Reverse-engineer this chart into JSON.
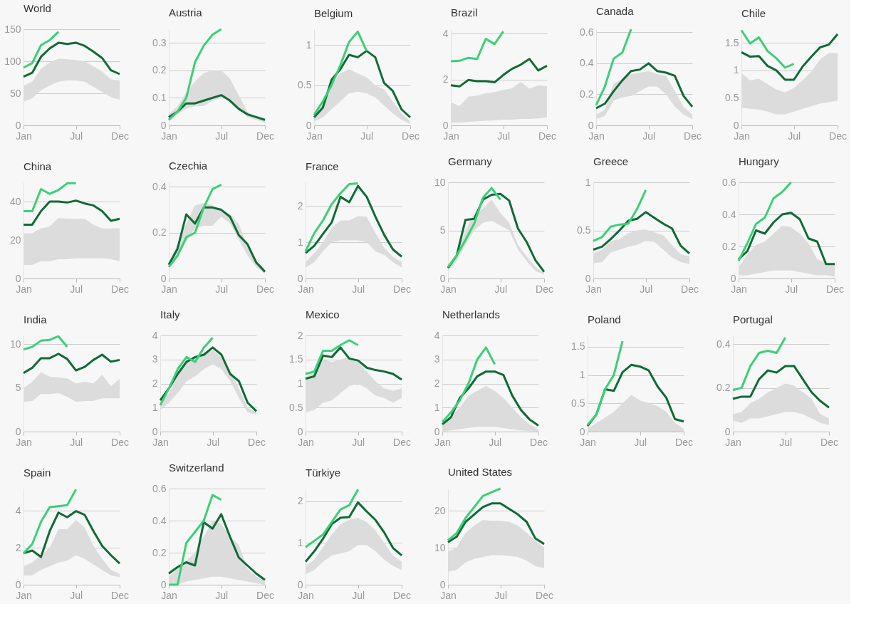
{
  "chart_data": [
    {
      "type": "line",
      "title": "World",
      "categories": [
        "Jan",
        null,
        null,
        null,
        null,
        null,
        "Jul",
        null,
        null,
        null,
        null,
        "Dec"
      ],
      "ylim": [
        0,
        150
      ],
      "yticks": [
        0,
        50,
        100,
        150
      ],
      "grid": "y",
      "series": [
        {
          "color": "#0e6b36",
          "values": [
            76,
            82,
            107,
            120,
            129,
            127,
            129,
            124,
            115,
            105,
            86,
            80
          ],
          "lower": [
            37,
            42,
            55,
            62,
            68,
            70,
            70,
            68,
            60,
            52,
            44,
            40
          ],
          "upper": [
            62,
            68,
            88,
            98,
            104,
            103,
            102,
            100,
            92,
            84,
            72,
            70
          ]
        },
        {
          "color": "#3ccf77",
          "values": [
            90,
            97,
            125,
            133,
            146,
            null,
            null,
            null,
            null,
            null,
            null,
            null
          ]
        }
      ]
    },
    {
      "type": "line",
      "title": "Austria",
      "categories": [
        "Jan",
        null,
        null,
        null,
        null,
        null,
        "Jul",
        null,
        null,
        null,
        null,
        "Dec"
      ],
      "ylim": [
        0,
        0.35
      ],
      "yticks": [
        0,
        0.1,
        0.2,
        0.3
      ],
      "grid": "y",
      "series": [
        {
          "color": "#0e6b36",
          "values": [
            0.03,
            0.05,
            0.08,
            0.08,
            0.09,
            0.1,
            0.11,
            0.09,
            0.06,
            0.04,
            0.03,
            0.02
          ],
          "lower": [
            0.02,
            0.04,
            0.06,
            0.07,
            0.07,
            0.09,
            0.1,
            0.09,
            0.06,
            0.03,
            0.02,
            0.01
          ],
          "upper": [
            0.04,
            0.07,
            0.12,
            0.16,
            0.19,
            0.2,
            0.2,
            0.17,
            0.11,
            0.05,
            0.03,
            0.02
          ]
        },
        {
          "color": "#3ccf77",
          "values": [
            0.02,
            0.05,
            0.1,
            0.23,
            0.29,
            0.33,
            0.35,
            null,
            null,
            null,
            null,
            null
          ]
        }
      ]
    },
    {
      "type": "line",
      "title": "Belgium",
      "categories": [
        "Jan",
        null,
        null,
        null,
        null,
        null,
        "Jul",
        null,
        null,
        null,
        null,
        "Dec"
      ],
      "ylim": [
        0,
        1.2
      ],
      "yticks": [
        0,
        0.5,
        1
      ],
      "grid": "y",
      "series": [
        {
          "color": "#0e6b36",
          "values": [
            0.1,
            0.22,
            0.57,
            0.7,
            0.88,
            0.85,
            0.93,
            0.85,
            0.53,
            0.43,
            0.2,
            0.1
          ],
          "lower": [
            0.05,
            0.1,
            0.2,
            0.3,
            0.4,
            0.42,
            0.4,
            0.35,
            0.25,
            0.15,
            0.07,
            0.02
          ],
          "upper": [
            0.15,
            0.3,
            0.5,
            0.65,
            0.7,
            0.65,
            0.6,
            0.5,
            0.45,
            0.3,
            0.15,
            0.05
          ]
        },
        {
          "color": "#3ccf77",
          "values": [
            0.13,
            0.3,
            0.5,
            0.75,
            1.04,
            1.17,
            0.93,
            null,
            null,
            null,
            null,
            null
          ]
        }
      ]
    },
    {
      "type": "line",
      "title": "Brazil",
      "categories": [
        "Jan",
        null,
        null,
        null,
        null,
        null,
        "Jul",
        null,
        null,
        null,
        null,
        "Dec"
      ],
      "ylim": [
        0,
        4.2
      ],
      "yticks": [
        0,
        2,
        4
      ],
      "grid": "y",
      "series": [
        {
          "color": "#0e6b36",
          "values": [
            1.75,
            1.7,
            1.98,
            1.93,
            1.93,
            1.88,
            2.2,
            2.47,
            2.65,
            2.9,
            2.4,
            2.6
          ],
          "lower": [
            0.12,
            0.12,
            0.15,
            0.18,
            0.2,
            0.22,
            0.25,
            0.25,
            0.28,
            0.28,
            0.3,
            0.35
          ],
          "upper": [
            1.0,
            0.85,
            1.25,
            1.3,
            1.4,
            1.45,
            1.55,
            1.62,
            1.9,
            1.6,
            1.75,
            1.7
          ]
        },
        {
          "color": "#3ccf77",
          "values": [
            2.8,
            2.82,
            2.95,
            2.9,
            3.78,
            3.55,
            4.1,
            null,
            null,
            null,
            null,
            null
          ]
        }
      ]
    },
    {
      "type": "line",
      "title": "Canada",
      "categories": [
        "Jan",
        null,
        null,
        null,
        null,
        null,
        "Jul",
        null,
        null,
        null,
        null,
        "Dec"
      ],
      "ylim": [
        0,
        0.62
      ],
      "yticks": [
        0,
        0.2,
        0.4,
        0.6
      ],
      "grid": "y",
      "series": [
        {
          "color": "#0e6b36",
          "values": [
            0.11,
            0.14,
            0.22,
            0.29,
            0.35,
            0.36,
            0.4,
            0.35,
            0.34,
            0.32,
            0.19,
            0.12
          ],
          "lower": [
            0.04,
            0.06,
            0.16,
            0.18,
            0.19,
            0.22,
            0.25,
            0.25,
            0.2,
            0.12,
            0.07,
            0.04
          ],
          "upper": [
            0.07,
            0.1,
            0.27,
            0.3,
            0.33,
            0.34,
            0.35,
            0.33,
            0.32,
            0.22,
            0.12,
            0.07
          ]
        },
        {
          "color": "#3ccf77",
          "values": [
            0.13,
            0.25,
            0.43,
            0.47,
            0.62,
            null,
            null,
            null,
            null,
            null,
            null,
            null
          ]
        }
      ]
    },
    {
      "type": "line",
      "title": "Chile",
      "categories": [
        "Jan",
        null,
        null,
        null,
        null,
        null,
        "Jul",
        null,
        null,
        null,
        null,
        "Dec"
      ],
      "ylim": [
        0,
        1.75
      ],
      "yticks": [
        0,
        0.5,
        1,
        1.5
      ],
      "grid": "y",
      "series": [
        {
          "color": "#0e6b36",
          "values": [
            1.33,
            1.25,
            1.26,
            1.08,
            1.0,
            0.83,
            0.83,
            1.07,
            1.25,
            1.42,
            1.47,
            1.66
          ],
          "lower": [
            0.32,
            0.3,
            0.29,
            0.25,
            0.2,
            0.2,
            0.25,
            0.3,
            0.35,
            0.4,
            0.42,
            0.45
          ],
          "upper": [
            0.95,
            0.82,
            0.85,
            0.75,
            0.65,
            0.6,
            0.68,
            0.82,
            0.98,
            1.2,
            1.32,
            1.32
          ]
        },
        {
          "color": "#3ccf77",
          "values": [
            1.73,
            1.49,
            1.6,
            1.35,
            1.22,
            1.05,
            1.12,
            null,
            null,
            null,
            null,
            null
          ]
        }
      ]
    },
    {
      "type": "line",
      "title": "China",
      "categories": [
        "Jan",
        null,
        null,
        null,
        null,
        null,
        "Jul",
        null,
        null,
        null,
        null,
        "Dec"
      ],
      "ylim": [
        0,
        50
      ],
      "yticks": [
        0,
        20,
        40
      ],
      "grid": "y",
      "series": [
        {
          "color": "#0e6b36",
          "values": [
            28,
            28,
            35,
            40,
            40,
            39.5,
            40.5,
            39,
            38,
            35,
            30,
            31
          ],
          "lower": [
            7,
            7,
            9,
            9,
            10,
            10,
            10.5,
            10.5,
            10.5,
            10.5,
            10,
            9
          ],
          "upper": [
            23.5,
            23.5,
            26,
            27,
            31.5,
            31,
            31,
            31,
            28,
            26,
            26,
            26
          ]
        },
        {
          "color": "#3ccf77",
          "values": [
            35,
            35,
            46.5,
            44,
            46,
            49.5,
            49.5,
            null,
            null,
            null,
            null,
            null
          ]
        }
      ]
    },
    {
      "type": "line",
      "title": "Czechia",
      "categories": [
        "Jan",
        null,
        null,
        null,
        null,
        null,
        "Jul",
        null,
        null,
        null,
        null,
        "Dec"
      ],
      "ylim": [
        0,
        0.42
      ],
      "yticks": [
        0,
        0.2,
        0.4
      ],
      "grid": "y",
      "series": [
        {
          "color": "#0e6b36",
          "values": [
            0.06,
            0.13,
            0.28,
            0.24,
            0.31,
            0.31,
            0.3,
            0.27,
            0.19,
            0.15,
            0.07,
            0.03
          ],
          "lower": [
            0.05,
            0.09,
            0.16,
            0.22,
            0.23,
            0.23,
            0.27,
            0.24,
            0.17,
            0.1,
            0.05,
            0.02
          ],
          "upper": [
            0.07,
            0.15,
            0.24,
            0.32,
            0.33,
            0.32,
            0.3,
            0.28,
            0.24,
            0.14,
            0.07,
            0.03
          ]
        },
        {
          "color": "#3ccf77",
          "values": [
            0.05,
            0.1,
            0.18,
            0.2,
            0.31,
            0.39,
            0.41,
            null,
            null,
            null,
            null,
            null
          ]
        }
      ]
    },
    {
      "type": "line",
      "title": "France",
      "categories": [
        "Jan",
        null,
        null,
        null,
        null,
        null,
        "Jul",
        null,
        null,
        null,
        null,
        "Dec"
      ],
      "ylim": [
        0,
        2.65
      ],
      "yticks": [
        0,
        1,
        2
      ],
      "grid": "y",
      "series": [
        {
          "color": "#0e6b36",
          "values": [
            0.7,
            0.9,
            1.23,
            1.55,
            2.25,
            2.1,
            2.55,
            2.25,
            1.7,
            1.2,
            0.8,
            0.6
          ],
          "lower": [
            0.3,
            0.45,
            0.75,
            1.0,
            1.05,
            1.05,
            1.05,
            1.0,
            0.75,
            0.65,
            0.45,
            0.3
          ],
          "upper": [
            0.45,
            0.7,
            1.0,
            1.4,
            1.6,
            1.6,
            1.72,
            1.7,
            1.25,
            0.85,
            0.6,
            0.45
          ]
        },
        {
          "color": "#3ccf77",
          "values": [
            0.75,
            1.25,
            1.6,
            2.05,
            2.35,
            2.6,
            2.62,
            null,
            null,
            null,
            null,
            null
          ]
        }
      ]
    },
    {
      "type": "line",
      "title": "Germany",
      "categories": [
        "Jan",
        null,
        null,
        null,
        null,
        null,
        "Jul",
        null,
        null,
        null,
        null,
        "Dec"
      ],
      "ylim": [
        0,
        10
      ],
      "yticks": [
        0,
        5,
        10
      ],
      "grid": "y",
      "series": [
        {
          "color": "#0e6b36",
          "values": [
            1.1,
            2.4,
            6.1,
            6.2,
            8.2,
            8.7,
            8.8,
            8.1,
            5.2,
            3.8,
            1.9,
            0.7
          ],
          "lower": [
            0.8,
            1.8,
            3.5,
            5.0,
            5.8,
            6.0,
            5.5,
            5.0,
            3.0,
            1.8,
            0.8,
            0.4
          ],
          "upper": [
            1.2,
            2.5,
            5,
            6.8,
            7.3,
            8.2,
            6.8,
            5.8,
            3.5,
            2.3,
            1.2,
            0.6
          ]
        },
        {
          "color": "#3ccf77",
          "values": [
            1.2,
            2.4,
            4.0,
            5.7,
            8.4,
            9.4,
            8.2,
            null,
            null,
            null,
            null,
            null
          ]
        }
      ]
    },
    {
      "type": "line",
      "title": "Greece",
      "categories": [
        "Jan",
        null,
        null,
        null,
        null,
        null,
        "Jul",
        null,
        null,
        null,
        null,
        "Dec"
      ],
      "ylim": [
        0,
        1
      ],
      "yticks": [
        0,
        0.5,
        1
      ],
      "grid": "y",
      "series": [
        {
          "color": "#0e6b36",
          "values": [
            0.3,
            0.33,
            0.41,
            0.5,
            0.6,
            0.62,
            0.69,
            0.63,
            0.57,
            0.52,
            0.34,
            0.26
          ],
          "lower": [
            0.16,
            0.17,
            0.27,
            0.3,
            0.33,
            0.35,
            0.39,
            0.38,
            0.3,
            0.22,
            0.17,
            0.15
          ],
          "upper": [
            0.26,
            0.3,
            0.39,
            0.41,
            0.47,
            0.5,
            0.51,
            0.48,
            0.45,
            0.35,
            0.25,
            0.23
          ]
        },
        {
          "color": "#3ccf77",
          "values": [
            0.39,
            0.43,
            0.54,
            0.56,
            0.57,
            0.72,
            0.92,
            null,
            null,
            null,
            null,
            null
          ]
        }
      ]
    },
    {
      "type": "line",
      "title": "Hungary",
      "categories": [
        "Jan",
        null,
        null,
        null,
        null,
        null,
        "Jul",
        null,
        null,
        null,
        null,
        "Dec"
      ],
      "ylim": [
        0,
        0.6
      ],
      "yticks": [
        0,
        0.2,
        0.4,
        0.6
      ],
      "grid": "y",
      "series": [
        {
          "color": "#0e6b36",
          "values": [
            0.12,
            0.17,
            0.3,
            0.28,
            0.35,
            0.4,
            0.41,
            0.37,
            0.25,
            0.23,
            0.09,
            0.09
          ],
          "lower": [
            0.02,
            0.02,
            0.03,
            0.04,
            0.05,
            0.05,
            0.05,
            0.04,
            0.03,
            0.02,
            0.02,
            0.01
          ],
          "upper": [
            0.07,
            0.15,
            0.21,
            0.23,
            0.28,
            0.33,
            0.32,
            0.28,
            0.22,
            0.12,
            0.1,
            0.08
          ]
        },
        {
          "color": "#3ccf77",
          "values": [
            0.11,
            0.22,
            0.34,
            0.38,
            0.5,
            0.54,
            0.6,
            null,
            null,
            null,
            null,
            null
          ]
        }
      ]
    },
    {
      "type": "line",
      "title": "India",
      "categories": [
        "Jan",
        null,
        null,
        null,
        null,
        null,
        "Jul",
        null,
        null,
        null,
        null,
        "Dec"
      ],
      "ylim": [
        0,
        11
      ],
      "yticks": [
        0,
        5,
        10
      ],
      "grid": "y",
      "series": [
        {
          "color": "#0e6b36",
          "values": [
            6.7,
            7.3,
            8.4,
            8.4,
            8.9,
            8.3,
            7.0,
            7.4,
            8.2,
            8.8,
            8.0,
            8.2
          ],
          "lower": [
            3.4,
            3.5,
            4.3,
            4.3,
            4.4,
            4.0,
            3.4,
            3.5,
            3.5,
            3.8,
            3.8,
            3.8
          ],
          "upper": [
            5.0,
            5.7,
            6.8,
            6.3,
            6.2,
            6.1,
            5.5,
            5.7,
            5.5,
            6.5,
            5.2,
            6.0
          ]
        },
        {
          "color": "#3ccf77",
          "values": [
            9.4,
            9.7,
            10.4,
            10.5,
            10.9,
            9.7,
            null,
            null,
            null,
            null,
            null,
            null
          ]
        }
      ]
    },
    {
      "type": "line",
      "title": "Italy",
      "categories": [
        "Jan",
        null,
        null,
        null,
        null,
        null,
        "Jul",
        null,
        null,
        null,
        null,
        "Dec"
      ],
      "ylim": [
        0,
        4
      ],
      "yticks": [
        0,
        1,
        2,
        3,
        4
      ],
      "grid": "y",
      "series": [
        {
          "color": "#0e6b36",
          "values": [
            1.3,
            1.8,
            2.4,
            2.9,
            3.1,
            3.2,
            3.5,
            3.2,
            2.4,
            2.1,
            1.2,
            0.85
          ],
          "lower": [
            0.9,
            1.2,
            1.6,
            2.1,
            2.3,
            2.6,
            2.8,
            2.6,
            2.1,
            1.4,
            0.8,
            0.7
          ],
          "upper": [
            1.2,
            1.6,
            2.3,
            2.9,
            3.1,
            3.2,
            3.4,
            3.1,
            2.5,
            1.8,
            1.0,
            0.8
          ]
        },
        {
          "color": "#3ccf77",
          "values": [
            1.1,
            1.8,
            2.6,
            3.1,
            2.9,
            3.5,
            3.9,
            null,
            null,
            null,
            null,
            null
          ]
        }
      ]
    },
    {
      "type": "line",
      "title": "Mexico",
      "categories": [
        "Jan",
        null,
        null,
        null,
        null,
        null,
        "Jul",
        null,
        null,
        null,
        null,
        "Dec"
      ],
      "ylim": [
        0,
        2
      ],
      "yticks": [
        0,
        0.5,
        1,
        1.5,
        2
      ],
      "grid": "y",
      "series": [
        {
          "color": "#0e6b36",
          "values": [
            1.1,
            1.15,
            1.58,
            1.55,
            1.75,
            1.52,
            1.48,
            1.33,
            1.28,
            1.25,
            1.2,
            1.08
          ],
          "lower": [
            0.4,
            0.45,
            0.6,
            0.65,
            0.8,
            0.95,
            1.0,
            0.9,
            0.75,
            0.7,
            0.6,
            0.7
          ],
          "upper": [
            1.1,
            1.3,
            1.5,
            1.45,
            1.5,
            1.55,
            1.45,
            1.25,
            1.05,
            0.9,
            0.85,
            0.9
          ]
        },
        {
          "color": "#3ccf77",
          "values": [
            1.2,
            1.25,
            1.68,
            1.68,
            1.8,
            1.9,
            1.8,
            null,
            null,
            null,
            null,
            null
          ]
        }
      ]
    },
    {
      "type": "line",
      "title": "Netherlands",
      "categories": [
        "Jan",
        null,
        null,
        null,
        null,
        null,
        "Jul",
        null,
        null,
        null,
        null,
        "Dec"
      ],
      "ylim": [
        0,
        4
      ],
      "yticks": [
        0,
        1,
        2,
        3,
        4
      ],
      "grid": "y",
      "series": [
        {
          "color": "#0e6b36",
          "values": [
            0.3,
            0.6,
            1.4,
            1.8,
            2.3,
            2.5,
            2.5,
            2.35,
            1.5,
            0.9,
            0.5,
            0.25
          ],
          "lower": [
            0,
            0.05,
            0.1,
            0.15,
            0.2,
            0.2,
            0.2,
            0.15,
            0.1,
            0.05,
            0.02,
            0
          ],
          "upper": [
            0.3,
            0.6,
            1.0,
            1.5,
            1.7,
            1.9,
            1.7,
            1.4,
            1.0,
            0.6,
            0.3,
            0.1
          ]
        },
        {
          "color": "#3ccf77",
          "values": [
            0.4,
            0.8,
            1.3,
            2.0,
            3.0,
            3.5,
            2.8,
            null,
            null,
            null,
            null,
            null
          ]
        }
      ]
    },
    {
      "type": "line",
      "title": "Poland",
      "categories": [
        "Jan",
        null,
        null,
        null,
        null,
        null,
        "Jul",
        null,
        null,
        null,
        null,
        "Dec"
      ],
      "ylim": [
        0,
        1.7
      ],
      "yticks": [
        0,
        0.5,
        1,
        1.5
      ],
      "grid": "y",
      "series": [
        {
          "color": "#0e6b36",
          "values": [
            0.1,
            0.3,
            0.75,
            0.72,
            1.05,
            1.18,
            1.15,
            1.08,
            0.8,
            0.6,
            0.22,
            0.18
          ],
          "lower": [
            0,
            0,
            0,
            0,
            0,
            0,
            0,
            0,
            0,
            0,
            0,
            0
          ],
          "upper": [
            0.05,
            0.15,
            0.25,
            0.35,
            0.5,
            0.65,
            0.55,
            0.5,
            0.45,
            0.35,
            0.15,
            0.05
          ]
        },
        {
          "color": "#3ccf77",
          "values": [
            0.12,
            0.3,
            0.75,
            1.0,
            1.6,
            null,
            null,
            null,
            null,
            null,
            null,
            null
          ]
        }
      ]
    },
    {
      "type": "line",
      "title": "Portugal",
      "categories": [
        "Jan",
        null,
        null,
        null,
        null,
        null,
        "Jul",
        null,
        null,
        null,
        null,
        "Dec"
      ],
      "ylim": [
        0,
        0.44
      ],
      "yticks": [
        0,
        0.2,
        0.4
      ],
      "grid": "y",
      "series": [
        {
          "color": "#0e6b36",
          "values": [
            0.15,
            0.16,
            0.16,
            0.24,
            0.28,
            0.27,
            0.3,
            0.3,
            0.24,
            0.18,
            0.14,
            0.11
          ],
          "lower": [
            0.05,
            0.04,
            0.06,
            0.06,
            0.07,
            0.08,
            0.09,
            0.09,
            0.08,
            0.06,
            0.04,
            0.03
          ],
          "upper": [
            0.08,
            0.09,
            0.13,
            0.15,
            0.18,
            0.2,
            0.22,
            0.21,
            0.18,
            0.15,
            0.08,
            0.06
          ]
        },
        {
          "color": "#3ccf77",
          "values": [
            0.19,
            0.2,
            0.3,
            0.36,
            0.37,
            0.36,
            0.43,
            null,
            null,
            null,
            null,
            null
          ]
        }
      ]
    },
    {
      "type": "line",
      "title": "Spain",
      "categories": [
        "Jan",
        null,
        null,
        null,
        null,
        null,
        "Jul",
        null,
        null,
        null,
        null,
        "Dec"
      ],
      "ylim": [
        0,
        5.2
      ],
      "yticks": [
        0,
        2,
        4
      ],
      "grid": "y",
      "series": [
        {
          "color": "#0e6b36",
          "values": [
            1.7,
            1.85,
            1.5,
            2.9,
            3.9,
            3.65,
            3.98,
            3.78,
            2.9,
            2.1,
            1.6,
            1.15
          ],
          "lower": [
            0.5,
            0.5,
            0.8,
            1.0,
            1.2,
            1.3,
            1.6,
            1.4,
            1.1,
            0.8,
            0.5,
            0.4
          ],
          "upper": [
            1.0,
            1.2,
            1.6,
            2.0,
            3.0,
            3.0,
            3.5,
            3.1,
            2.1,
            1.4,
            0.8,
            0.6
          ]
        },
        {
          "color": "#3ccf77",
          "values": [
            1.7,
            2.2,
            3.4,
            4.2,
            4.25,
            4.3,
            5.15,
            null,
            null,
            null,
            null,
            null
          ]
        }
      ]
    },
    {
      "type": "line",
      "title": "Switzerland",
      "categories": [
        "Jan",
        null,
        null,
        null,
        null,
        null,
        "Jul",
        null,
        null,
        null,
        null,
        "Dec"
      ],
      "ylim": [
        0,
        0.6
      ],
      "yticks": [
        0,
        0.2,
        0.4,
        0.6
      ],
      "grid": "y",
      "series": [
        {
          "color": "#0e6b36",
          "values": [
            0.07,
            0.11,
            0.14,
            0.12,
            0.39,
            0.35,
            0.44,
            0.3,
            0.17,
            0.12,
            0.07,
            0.03
          ],
          "lower": [
            0,
            0,
            0.02,
            0.03,
            0.04,
            0.05,
            0.05,
            0.04,
            0.03,
            0.02,
            0.01,
            0
          ],
          "upper": [
            0.05,
            0.1,
            0.15,
            0.2,
            0.3,
            0.4,
            0.38,
            0.3,
            0.25,
            0.1,
            0.05,
            0.02
          ]
        },
        {
          "color": "#3ccf77",
          "values": [
            0,
            0,
            0.26,
            0.33,
            0.4,
            0.56,
            0.53,
            null,
            null,
            null,
            null,
            null
          ]
        }
      ]
    },
    {
      "type": "line",
      "title": "Türkiye",
      "categories": [
        "Jan",
        null,
        null,
        null,
        null,
        null,
        "Jul",
        null,
        null,
        null,
        null,
        "Dec"
      ],
      "ylim": [
        0,
        2.3
      ],
      "yticks": [
        0,
        1,
        2
      ],
      "grid": "y",
      "series": [
        {
          "color": "#0e6b36",
          "values": [
            0.55,
            0.8,
            1.1,
            1.45,
            1.6,
            1.62,
            1.97,
            1.75,
            1.55,
            1.25,
            0.88,
            0.7
          ],
          "lower": [
            0.25,
            0.35,
            0.55,
            0.7,
            0.75,
            0.8,
            0.95,
            0.95,
            0.8,
            0.6,
            0.45,
            0.35
          ],
          "upper": [
            0.45,
            0.6,
            0.9,
            1.2,
            1.45,
            1.55,
            1.6,
            1.5,
            1.3,
            1.0,
            0.7,
            0.55
          ]
        },
        {
          "color": "#3ccf77",
          "values": [
            0.9,
            1.05,
            1.2,
            1.5,
            1.8,
            1.9,
            2.28,
            null,
            null,
            null,
            null,
            null
          ]
        }
      ]
    },
    {
      "type": "line",
      "title": "United States",
      "categories": [
        "Jan",
        null,
        null,
        null,
        null,
        null,
        "Jul",
        null,
        null,
        null,
        null,
        "Dec"
      ],
      "ylim": [
        0,
        26
      ],
      "yticks": [
        0,
        10,
        20
      ],
      "grid": "y",
      "series": [
        {
          "color": "#0e6b36",
          "values": [
            11.5,
            13,
            17,
            19,
            21,
            22,
            22,
            20.5,
            19,
            17,
            12.5,
            11
          ],
          "lower": [
            3.5,
            4,
            6,
            7,
            7.5,
            8,
            8,
            7.8,
            7.5,
            6.5,
            5,
            4.5
          ],
          "upper": [
            9,
            10,
            14,
            16,
            17.5,
            17.3,
            17.3,
            17,
            16,
            14,
            12,
            10
          ]
        },
        {
          "color": "#3ccf77",
          "values": [
            12,
            14,
            18,
            21,
            24,
            25,
            26,
            null,
            null,
            null,
            null,
            null
          ]
        }
      ]
    }
  ]
}
